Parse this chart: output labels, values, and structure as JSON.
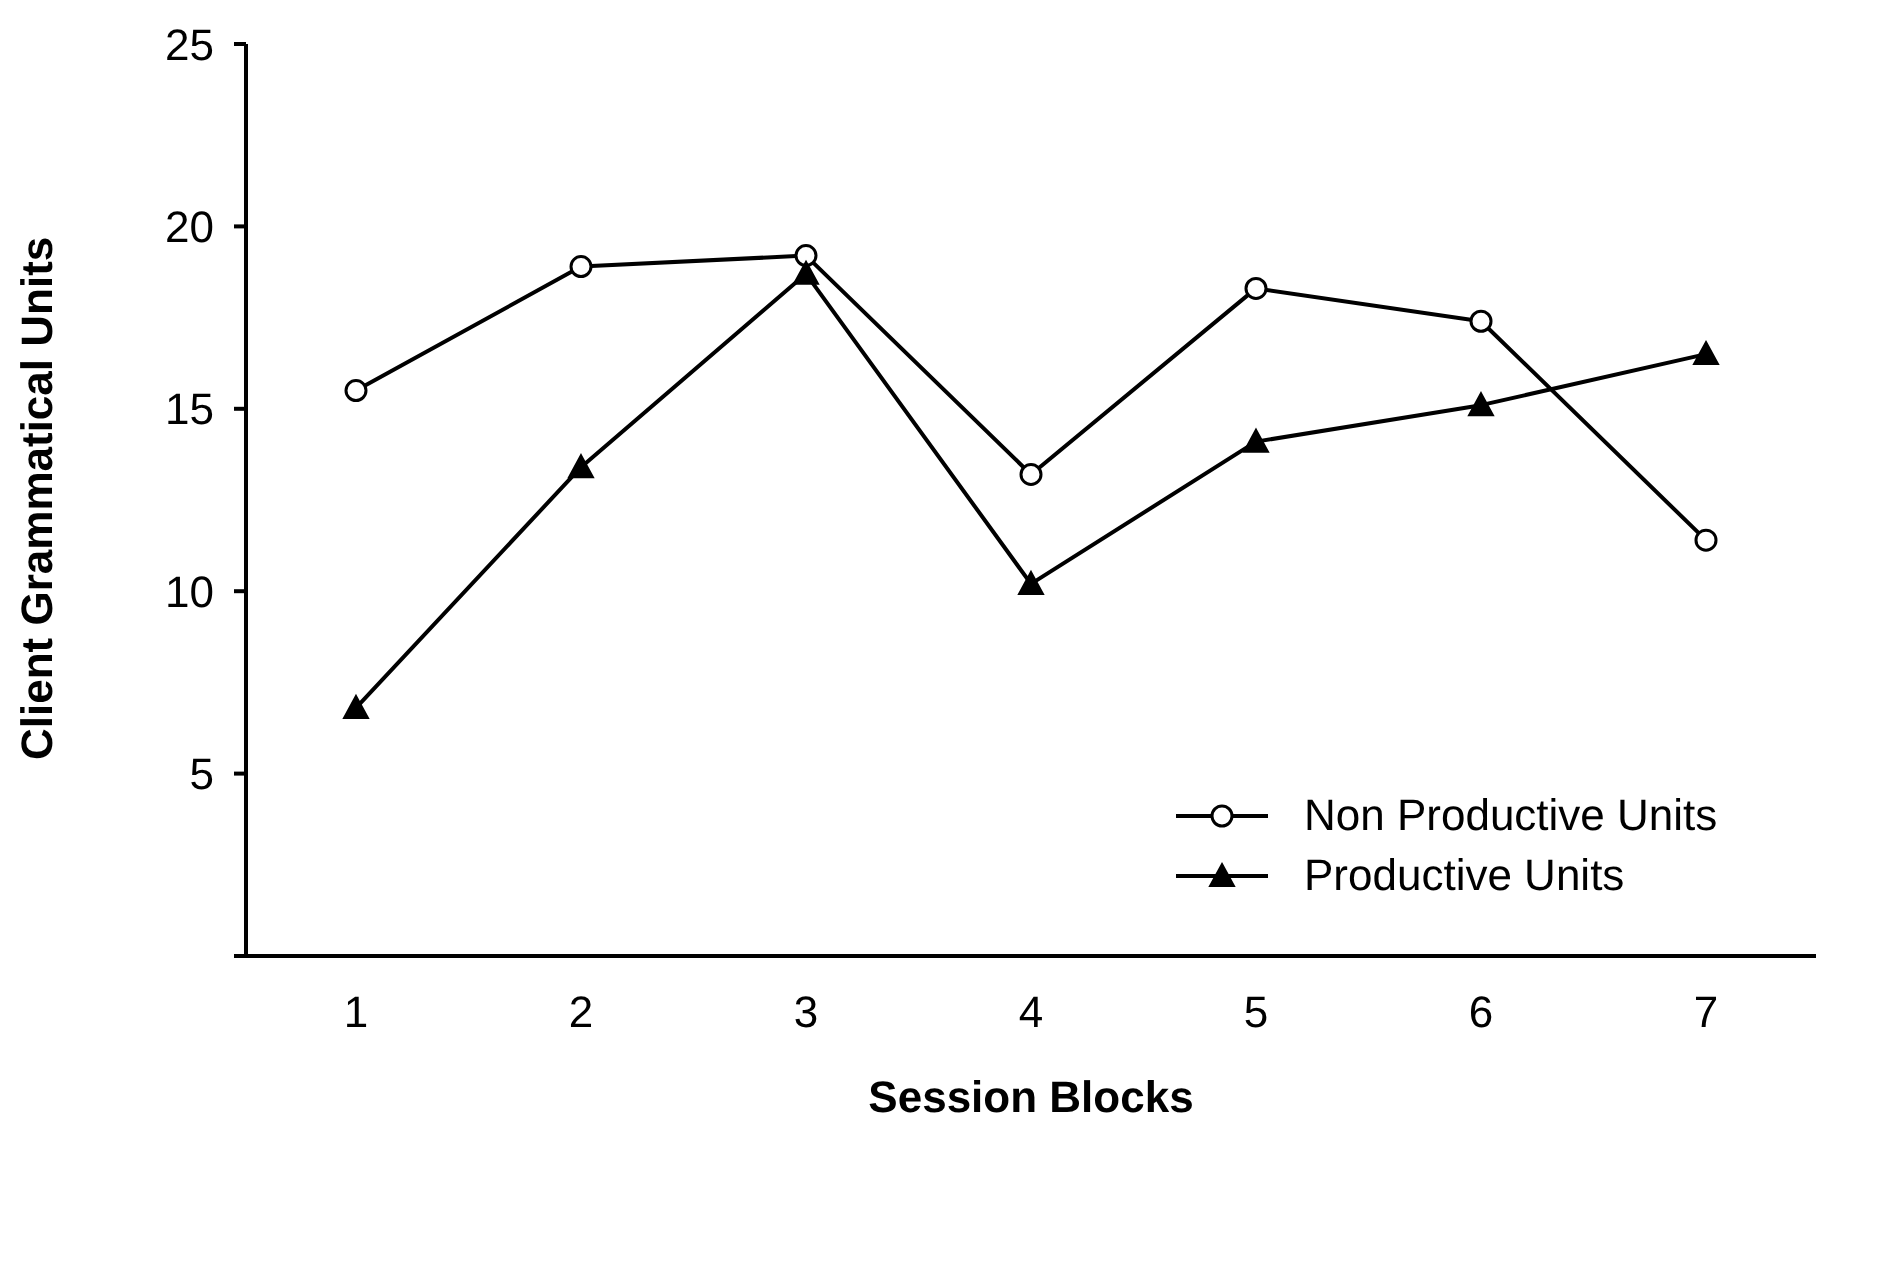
{
  "chart_data": {
    "type": "line",
    "xlabel": "Session Blocks",
    "ylabel": "Client Grammatical Units",
    "categories": [
      "1",
      "2",
      "3",
      "4",
      "5",
      "6",
      "7"
    ],
    "series": [
      {
        "name": "Non Productive Units",
        "color": "#000000",
        "marker": "circle",
        "values": [
          15.5,
          18.9,
          19.2,
          13.2,
          18.3,
          17.4,
          11.4
        ]
      },
      {
        "name": "Productive Units",
        "color": "#000000",
        "marker": "triangle",
        "values": [
          6.8,
          13.4,
          18.7,
          10.2,
          14.1,
          15.1,
          16.5
        ]
      }
    ],
    "ylim": [
      0,
      25
    ],
    "yticks": [
      {
        "value": 0,
        "label": null
      },
      5,
      10,
      15,
      20,
      25
    ],
    "grid": false,
    "legend": "bottom right",
    "line_style": "solid"
  }
}
